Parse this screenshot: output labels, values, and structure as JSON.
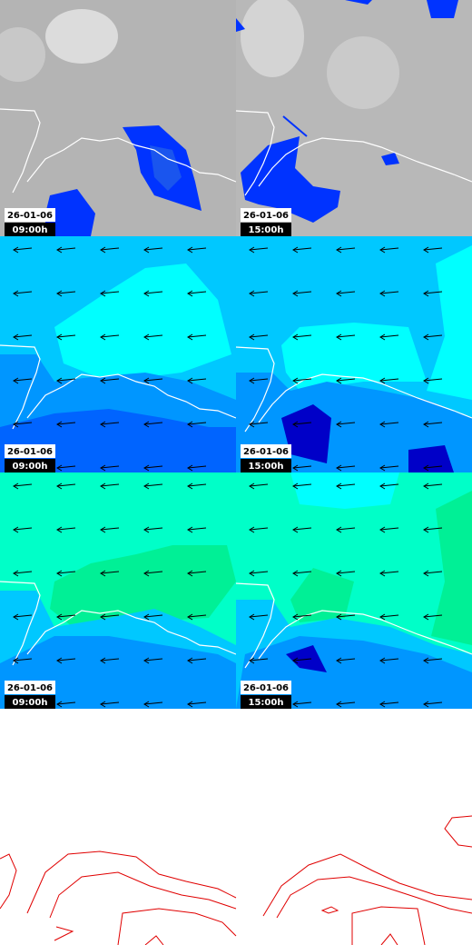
{
  "panels": [
    {
      "date": "26-01-06",
      "time": "09:00h"
    },
    {
      "date": "26-01-06",
      "time": "15:00h"
    },
    {
      "date": "26-01-06",
      "time": "09:00h"
    },
    {
      "date": "26-01-06",
      "time": "15:00h"
    },
    {
      "date": "26-01-06",
      "time": "09:00h"
    },
    {
      "date": "26-01-06",
      "time": "15:00h"
    }
  ]
}
